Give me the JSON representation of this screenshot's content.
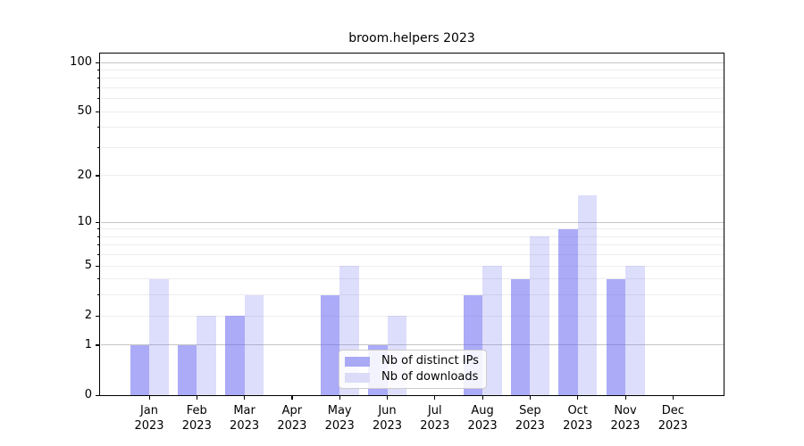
{
  "chart_data": {
    "type": "bar",
    "title": "broom.helpers 2023",
    "categories": [
      "Jan",
      "Feb",
      "Mar",
      "Apr",
      "May",
      "Jun",
      "Jul",
      "Aug",
      "Sep",
      "Oct",
      "Nov",
      "Dec"
    ],
    "year_label": "2023",
    "series": [
      {
        "name": "Nb of distinct IPs",
        "fill": "rgba(102,102,240,0.55)",
        "swatch": "#a9a9f6",
        "values": [
          1,
          1,
          2,
          0,
          3,
          1,
          0,
          3,
          4,
          9,
          4,
          0
        ]
      },
      {
        "name": "Nb of downloads",
        "fill": "rgba(102,102,240,0.22)",
        "swatch": "#dcdcf8",
        "values": [
          4,
          2,
          3,
          0,
          5,
          2,
          0,
          5,
          8,
          15,
          5,
          0
        ]
      }
    ],
    "yscale": "log1p",
    "yticks": [
      0,
      1,
      2,
      5,
      10,
      20,
      50,
      100
    ],
    "ylim": [
      0,
      113
    ],
    "grid": {
      "decade_lines": [
        1,
        10,
        100
      ],
      "decade_color": "#c6c6c6",
      "minor_lines": [
        2,
        3,
        4,
        5,
        6,
        7,
        8,
        9,
        20,
        30,
        40,
        50,
        60,
        70,
        80,
        90
      ],
      "minor_color": "#ededed"
    },
    "legend_position": "lower center"
  }
}
